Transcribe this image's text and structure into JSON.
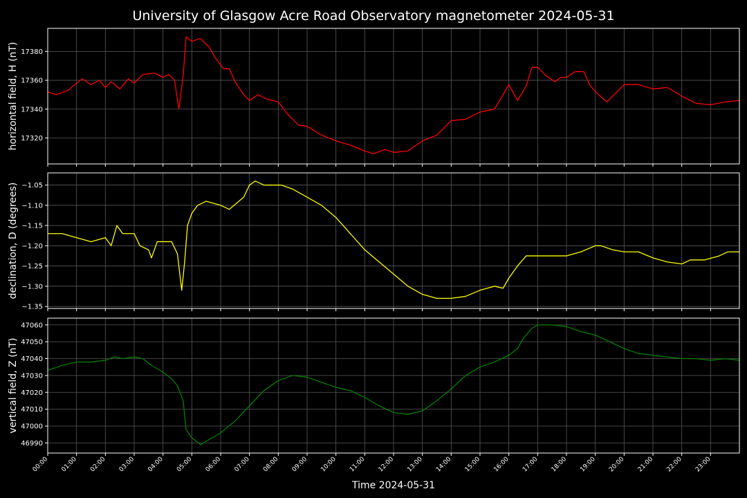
{
  "chart_data": {
    "type": "line",
    "title": "University of Glasgow Acre Road Observatory magnetometer 2024-05-31",
    "xlabel": "Time 2024-05-31",
    "x_unit": "hours",
    "xlim": [
      0,
      24
    ],
    "x_tick_labels": [
      "00:00",
      "01:00",
      "02:00",
      "03:00",
      "04:00",
      "05:00",
      "06:00",
      "07:00",
      "08:00",
      "09:00",
      "10:00",
      "11:00",
      "12:00",
      "13:00",
      "14:00",
      "15:00",
      "16:00",
      "17:00",
      "18:00",
      "19:00",
      "20:00",
      "21:00",
      "22:00",
      "23:00"
    ],
    "grid": true,
    "panels": [
      {
        "ylabel": "horizontal field, H (nT)",
        "color": "#ff0000",
        "ylim": [
          17302,
          17396
        ],
        "yticks": [
          17320,
          17340,
          17360,
          17380
        ],
        "ytick_labels": [
          "17320",
          "17340",
          "17360",
          "17380"
        ],
        "x": [
          0,
          0.3,
          0.7,
          1.0,
          1.2,
          1.5,
          1.8,
          2.0,
          2.2,
          2.5,
          2.8,
          3.0,
          3.3,
          3.7,
          4.0,
          4.2,
          4.4,
          4.55,
          4.7,
          4.8,
          5.0,
          5.3,
          5.6,
          5.8,
          6.1,
          6.3,
          6.5,
          6.8,
          7.0,
          7.3,
          7.6,
          8.0,
          8.3,
          8.7,
          9.0,
          9.5,
          10.0,
          10.5,
          11.0,
          11.3,
          11.7,
          12.0,
          12.5,
          13.0,
          13.5,
          14.0,
          14.5,
          15.0,
          15.5,
          15.8,
          16.0,
          16.3,
          16.6,
          16.8,
          17.0,
          17.3,
          17.6,
          17.8,
          18.0,
          18.3,
          18.6,
          18.8,
          19.0,
          19.4,
          19.7,
          20.0,
          20.5,
          21.0,
          21.5,
          22.0,
          22.5,
          23.0,
          23.5,
          24.0
        ],
        "y": [
          17352,
          17350,
          17353,
          17358,
          17361,
          17357,
          17360,
          17355,
          17359,
          17354,
          17361,
          17358,
          17364,
          17365,
          17362,
          17364,
          17360,
          17340,
          17363,
          17390,
          17387,
          17389,
          17383,
          17376,
          17368,
          17368,
          17359,
          17350,
          17346,
          17350,
          17347,
          17345,
          17337,
          17329,
          17328,
          17322,
          17318,
          17315,
          17311,
          17309,
          17312,
          17310,
          17311,
          17318,
          17322,
          17332,
          17333,
          17338,
          17340,
          17350,
          17357,
          17346,
          17356,
          17369,
          17369,
          17363,
          17359,
          17362,
          17362,
          17366,
          17366,
          17357,
          17352,
          17345,
          17351,
          17357,
          17357,
          17354,
          17355,
          17349,
          17344,
          17343,
          17345,
          17346
        ]
      },
      {
        "ylabel": "declination, D (degrees)",
        "color": "#ffff00",
        "ylim": [
          -1.355,
          -1.02
        ],
        "yticks": [
          -1.35,
          -1.3,
          -1.25,
          -1.2,
          -1.15,
          -1.1,
          -1.05
        ],
        "ytick_labels": [
          "−1.35",
          "−1.30",
          "−1.25",
          "−1.20",
          "−1.15",
          "−1.10",
          "−1.05"
        ],
        "x": [
          0,
          0.5,
          1.0,
          1.5,
          2.0,
          2.2,
          2.4,
          2.6,
          3.0,
          3.2,
          3.5,
          3.6,
          3.8,
          4.1,
          4.3,
          4.5,
          4.65,
          4.75,
          4.85,
          5.0,
          5.2,
          5.5,
          6.0,
          6.3,
          6.8,
          7.0,
          7.2,
          7.5,
          7.8,
          8.1,
          8.5,
          9.0,
          9.5,
          10.0,
          10.5,
          11.0,
          11.5,
          12.0,
          12.5,
          13.0,
          13.5,
          14.0,
          14.5,
          15.0,
          15.5,
          15.8,
          16.0,
          16.3,
          16.6,
          17.0,
          17.5,
          18.0,
          18.5,
          19.0,
          19.2,
          19.6,
          20.0,
          20.5,
          21.0,
          21.5,
          22.0,
          22.3,
          22.8,
          23.3,
          23.6,
          24.0
        ],
        "y": [
          -1.17,
          -1.17,
          -1.18,
          -1.19,
          -1.18,
          -1.2,
          -1.15,
          -1.17,
          -1.17,
          -1.2,
          -1.21,
          -1.23,
          -1.19,
          -1.19,
          -1.19,
          -1.22,
          -1.31,
          -1.24,
          -1.15,
          -1.12,
          -1.1,
          -1.09,
          -1.1,
          -1.11,
          -1.08,
          -1.05,
          -1.04,
          -1.05,
          -1.05,
          -1.05,
          -1.06,
          -1.08,
          -1.1,
          -1.13,
          -1.17,
          -1.21,
          -1.24,
          -1.27,
          -1.3,
          -1.32,
          -1.33,
          -1.33,
          -1.325,
          -1.31,
          -1.3,
          -1.305,
          -1.28,
          -1.25,
          -1.225,
          -1.225,
          -1.225,
          -1.225,
          -1.215,
          -1.2,
          -1.2,
          -1.21,
          -1.215,
          -1.215,
          -1.23,
          -1.24,
          -1.245,
          -1.235,
          -1.235,
          -1.225,
          -1.215,
          -1.215
        ]
      },
      {
        "ylabel": "vertical field, Z (nT)",
        "color": "#008000",
        "ylim": [
          46984,
          47064
        ],
        "yticks": [
          46990,
          47000,
          47010,
          47020,
          47030,
          47040,
          47050,
          47060
        ],
        "ytick_labels": [
          "46990",
          "47000",
          "47010",
          "47020",
          "47030",
          "47040",
          "47050",
          "47060"
        ],
        "x": [
          0,
          0.5,
          1.0,
          1.5,
          2.0,
          2.3,
          2.6,
          3.0,
          3.3,
          3.6,
          4.0,
          4.3,
          4.5,
          4.7,
          4.8,
          5.0,
          5.3,
          5.6,
          6.0,
          6.5,
          7.0,
          7.5,
          8.0,
          8.5,
          9.0,
          9.5,
          10.0,
          10.5,
          11.0,
          11.5,
          12.0,
          12.5,
          13.0,
          13.5,
          14.0,
          14.5,
          15.0,
          15.5,
          16.0,
          16.3,
          16.5,
          16.8,
          17.0,
          17.5,
          18.0,
          18.5,
          19.0,
          19.5,
          20.0,
          20.5,
          21.0,
          21.5,
          22.0,
          22.5,
          23.0,
          23.5,
          24.0
        ],
        "y": [
          47033,
          47036,
          47038,
          47038,
          47039,
          47041,
          47040,
          47041,
          47040,
          47036,
          47032,
          47028,
          47024,
          47015,
          46998,
          46993,
          46989,
          46992,
          46996,
          47003,
          47012,
          47021,
          47027,
          47030,
          47029,
          47026,
          47023,
          47021,
          47017,
          47012,
          47008,
          47007,
          47009,
          47015,
          47022,
          47030,
          47035,
          47038,
          47042,
          47046,
          47052,
          47058,
          47060,
          47060,
          47059,
          47056,
          47054,
          47050,
          47046,
          47043,
          47042,
          47041,
          47040,
          47040,
          47039,
          47040,
          47039
        ]
      }
    ]
  }
}
